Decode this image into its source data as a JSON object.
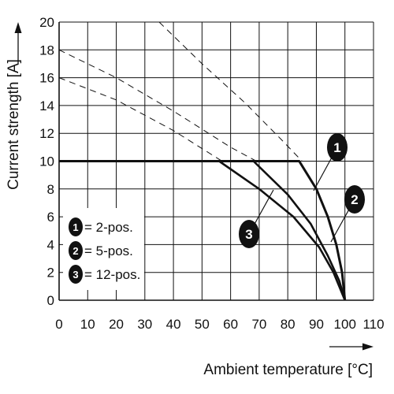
{
  "chart_data": {
    "type": "line",
    "xlabel": "Ambient temperature [°C]",
    "ylabel": "Current strength [A]",
    "xlim": [
      0,
      110
    ],
    "ylim": [
      0,
      20
    ],
    "x_ticks": [
      "0",
      "10",
      "20",
      "30",
      "40",
      "50",
      "60",
      "70",
      "80",
      "90",
      "100",
      "110"
    ],
    "y_ticks": [
      "0",
      "2",
      "4",
      "6",
      "8",
      "10",
      "12",
      "14",
      "16",
      "18",
      "20"
    ],
    "grid": true,
    "series": [
      {
        "name": "2-pos.",
        "badge": "1",
        "dashed_points": [
          [
            35,
            20
          ],
          [
            50,
            17
          ],
          [
            65,
            14.2
          ],
          [
            78,
            11.5
          ],
          [
            85,
            10
          ]
        ],
        "solid_points": [
          [
            0,
            10
          ],
          [
            84,
            10
          ],
          [
            90,
            8
          ],
          [
            94,
            6
          ],
          [
            97,
            4
          ],
          [
            99,
            2
          ],
          [
            100,
            0
          ]
        ]
      },
      {
        "name": "5-pos.",
        "badge": "2",
        "dashed_points": [
          [
            0,
            18
          ],
          [
            20,
            16
          ],
          [
            40,
            13.6
          ],
          [
            60,
            11
          ],
          [
            69,
            10
          ]
        ],
        "solid_points": [
          [
            68,
            10
          ],
          [
            80,
            7.6
          ],
          [
            88,
            5.5
          ],
          [
            94,
            3.2
          ],
          [
            98,
            1.4
          ],
          [
            100,
            0
          ]
        ]
      },
      {
        "name": "12-pos.",
        "badge": "3",
        "dashed_points": [
          [
            0,
            16
          ],
          [
            20,
            14.4
          ],
          [
            40,
            12.2
          ],
          [
            57,
            10
          ]
        ],
        "solid_points": [
          [
            56,
            10
          ],
          [
            70,
            8
          ],
          [
            82,
            6
          ],
          [
            91,
            3.8
          ],
          [
            96,
            2
          ],
          [
            100,
            0
          ]
        ]
      }
    ],
    "legend": [
      {
        "badge": "1",
        "label": "= 2-pos."
      },
      {
        "badge": "2",
        "label": "= 5-pos."
      },
      {
        "badge": "3",
        "label": "= 12-pos."
      }
    ],
    "legend_position": "bottom-left",
    "colors": {
      "line": "#111111",
      "grid": "#111111",
      "badge": "#111111"
    }
  }
}
